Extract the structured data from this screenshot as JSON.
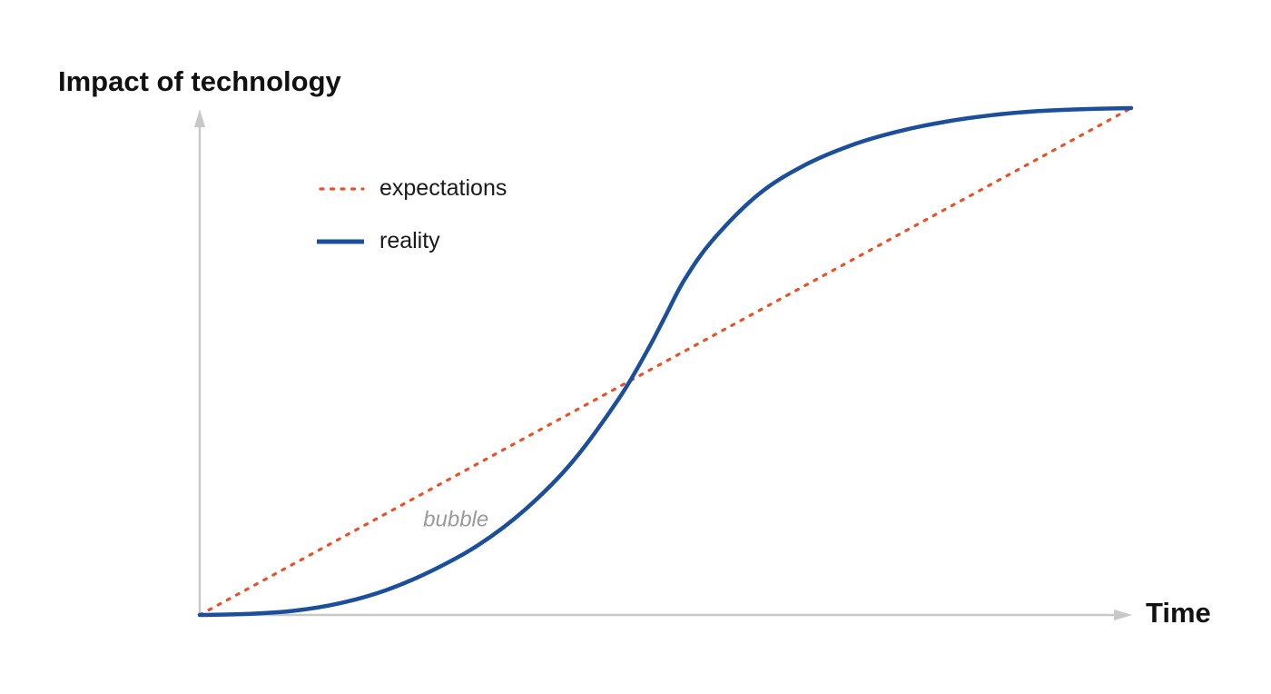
{
  "chart_data": {
    "type": "line",
    "title": "",
    "ylabel": "Impact of technology",
    "xlabel": "Time",
    "xlim": [
      0,
      100
    ],
    "ylim": [
      0,
      100
    ],
    "grid": false,
    "legend_position": "top-left",
    "series": [
      {
        "name": "expectations",
        "style": "dotted",
        "color": "#e8512a",
        "x": [
          0,
          100
        ],
        "y": [
          0,
          100
        ]
      },
      {
        "name": "reality",
        "style": "solid",
        "color": "#1b4f9c",
        "x": [
          0,
          5,
          10,
          15,
          20,
          25,
          30,
          35,
          40,
          45,
          48,
          50,
          52,
          55,
          60,
          65,
          70,
          75,
          80,
          85,
          90,
          95,
          100
        ],
        "y": [
          0,
          0.2,
          0.8,
          2.3,
          4.9,
          8.8,
          13.9,
          20.9,
          30.2,
          42.7,
          52.0,
          59.0,
          66.0,
          73.8,
          83.0,
          88.8,
          92.7,
          95.4,
          97.3,
          98.6,
          99.4,
          99.8,
          100
        ]
      }
    ],
    "annotations": [
      {
        "text": "bubble",
        "x": 27.5,
        "y": 17.5
      }
    ],
    "colors": {
      "axis": "#c8c8c8",
      "expectations": "#e8512a",
      "reality": "#1b4f9c",
      "annotation": "#9a9a9a"
    }
  }
}
